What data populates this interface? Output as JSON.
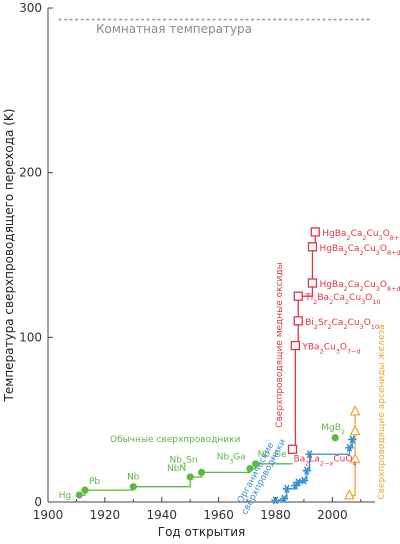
{
  "chart_data": {
    "type": "scatter",
    "title": "",
    "xlabel": "Год открытия",
    "ylabel": "Температура сверхпроводящего перехода (K)",
    "xlim": [
      1900,
      2015
    ],
    "ylim": [
      0,
      300
    ],
    "x_ticks": [
      "1900",
      "1920",
      "1940",
      "1960",
      "1980",
      "2000"
    ],
    "y_ticks": [
      "0",
      "100",
      "200",
      "300"
    ],
    "reference_line": {
      "y": 293,
      "label": "Комнатная температура",
      "style": "dotted"
    },
    "series": [
      {
        "name": "Обычные сверхпроводники",
        "color": "#5fb845",
        "marker": "circle",
        "step": true,
        "points": [
          {
            "x": 1911,
            "y": 4.2,
            "label": "Hg"
          },
          {
            "x": 1913,
            "y": 7.2,
            "label": "Pb"
          },
          {
            "x": 1930,
            "y": 9.3,
            "label": "Nb"
          },
          {
            "x": 1950,
            "y": 15.2,
            "label": "NbN"
          },
          {
            "x": 1954,
            "y": 18.0,
            "label": "Nb3Sn"
          },
          {
            "x": 1971,
            "y": 20.3,
            "label": "Nb3Ga"
          },
          {
            "x": 1973,
            "y": 23.2,
            "label": "Nb3Ge"
          }
        ],
        "extra_points": [
          {
            "x": 2001,
            "y": 39,
            "label": "MgB2"
          }
        ]
      },
      {
        "name": "Сверхпроводящие медные оксиды",
        "color": "#e03546",
        "marker": "square",
        "step": true,
        "points": [
          {
            "x": 1986,
            "y": 32,
            "label": "Ba2La2−xCuO4"
          },
          {
            "x": 1987,
            "y": 95,
            "label": "YBa2Cu3O7−d"
          },
          {
            "x": 1988,
            "y": 110,
            "label": "Bi2Sr2Ca2Cu3O10"
          },
          {
            "x": 1988,
            "y": 125,
            "label": "Tl2Ba2Ca2Cu3O10"
          },
          {
            "x": 1993,
            "y": 133,
            "label": "HgBa2Ca2Cu3O8+d"
          },
          {
            "x": 1993,
            "y": 155,
            "label": "HgBa2Ca2Cu3O8+d"
          },
          {
            "x": 1994,
            "y": 164,
            "label": "HgBa2Ca2Cu3O8+d"
          }
        ]
      },
      {
        "name": "Сверхпроводящие арсениды железа",
        "color": "#f0a638",
        "marker": "triangle",
        "step": true,
        "points": [
          {
            "x": 2006,
            "y": 4
          },
          {
            "x": 2008,
            "y": 26
          },
          {
            "x": 2008,
            "y": 43
          },
          {
            "x": 2008,
            "y": 55
          }
        ]
      },
      {
        "name": "Органические сверхпроводники",
        "color": "#3a8fd0",
        "marker": "star",
        "step": true,
        "points": [
          {
            "x": 1980,
            "y": 1
          },
          {
            "x": 1983,
            "y": 2
          },
          {
            "x": 1984,
            "y": 8
          },
          {
            "x": 1987,
            "y": 10
          },
          {
            "x": 1988,
            "y": 12
          },
          {
            "x": 1990,
            "y": 13
          },
          {
            "x": 1991,
            "y": 19
          },
          {
            "x": 1992,
            "y": 29
          },
          {
            "x": 2006,
            "y": 33
          },
          {
            "x": 2007,
            "y": 38
          }
        ]
      }
    ],
    "group_labels": {
      "conventional": "Обычные сверхпроводники",
      "cuprates": "Сверхпроводящие медные оксиды",
      "iron": "Сверхпроводящие арсениды железа",
      "organic": "Органические сверхпроводники"
    },
    "grid": false
  }
}
